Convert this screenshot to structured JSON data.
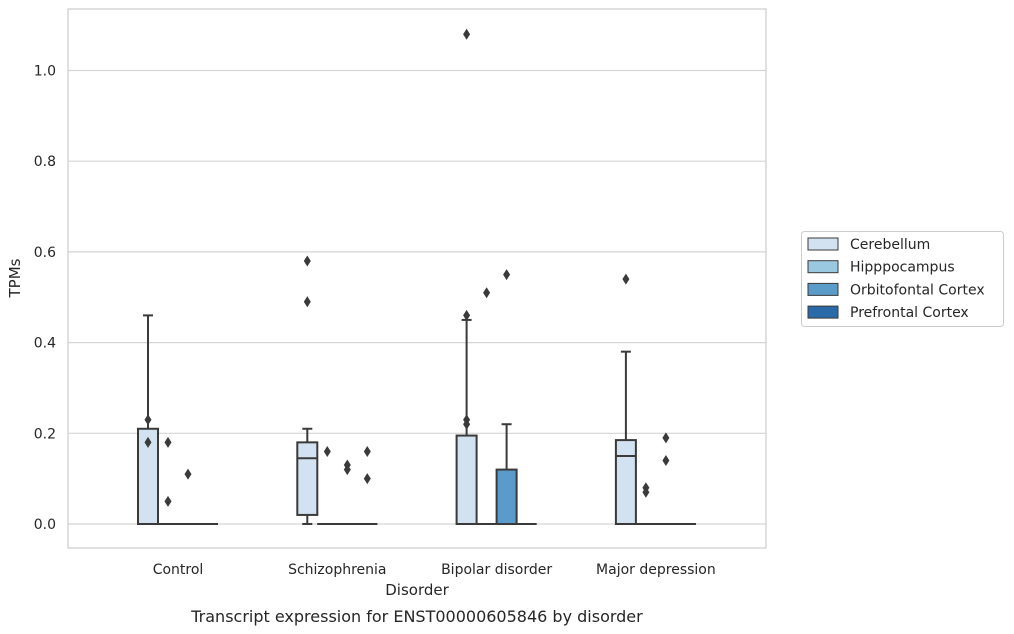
{
  "chart_data": {
    "type": "box",
    "title": "",
    "caption": "Transcript expression for ENST00000605846 by disorder",
    "xlabel": "Disorder",
    "ylabel": "TPMs",
    "ylim": [
      -0.05,
      1.135
    ],
    "yticks": [
      "0.0",
      "0.2",
      "0.4",
      "0.6",
      "0.8",
      "1.0"
    ],
    "ytick_values": [
      0.0,
      0.2,
      0.4,
      0.6,
      0.8,
      1.0
    ],
    "grid": "horizontal",
    "legend_position": "right-outside",
    "categories": [
      "Control",
      "Schizophrenia",
      "Bipolar disorder",
      "Major depression"
    ],
    "series": [
      {
        "name": "Cerebellum",
        "color": "#d2e2f1",
        "boxes": [
          {
            "q1": 0.0,
            "median": 0.0,
            "q3": 0.21,
            "whislo": 0.0,
            "whishi": 0.46,
            "fliers": [
              0.23,
              0.18
            ]
          },
          {
            "q1": 0.02,
            "median": 0.145,
            "q3": 0.18,
            "whislo": 0.0,
            "whishi": 0.21,
            "fliers": [
              0.58,
              0.49
            ]
          },
          {
            "q1": 0.0,
            "median": 0.0,
            "q3": 0.195,
            "whislo": 0.0,
            "whishi": 0.45,
            "fliers": [
              1.08,
              0.46,
              0.23,
              0.22
            ]
          },
          {
            "q1": 0.0,
            "median": 0.15,
            "q3": 0.185,
            "whislo": 0.0,
            "whishi": 0.38,
            "fliers": [
              0.54
            ]
          }
        ]
      },
      {
        "name": "Hipppocampus",
        "color": "#9ac8e0",
        "boxes": [
          {
            "q1": 0.0,
            "median": 0.0,
            "q3": 0.0,
            "whislo": 0.0,
            "whishi": 0.0,
            "fliers": [
              0.18,
              0.05
            ]
          },
          {
            "q1": 0.0,
            "median": 0.0,
            "q3": 0.0,
            "whislo": 0.0,
            "whishi": 0.0,
            "fliers": [
              0.16
            ]
          },
          {
            "q1": 0.0,
            "median": 0.0,
            "q3": 0.0,
            "whislo": 0.0,
            "whishi": 0.0,
            "fliers": [
              0.51
            ]
          },
          {
            "q1": 0.0,
            "median": 0.0,
            "q3": 0.0,
            "whislo": 0.0,
            "whishi": 0.0,
            "fliers": [
              0.08,
              0.07
            ]
          }
        ]
      },
      {
        "name": "Orbitofontal Cortex",
        "color": "#5a9bca",
        "boxes": [
          {
            "q1": 0.0,
            "median": 0.0,
            "q3": 0.0,
            "whislo": 0.0,
            "whishi": 0.0,
            "fliers": [
              0.11
            ]
          },
          {
            "q1": 0.0,
            "median": 0.0,
            "q3": 0.0,
            "whislo": 0.0,
            "whishi": 0.0,
            "fliers": [
              0.13,
              0.12
            ]
          },
          {
            "q1": 0.0,
            "median": 0.0,
            "q3": 0.12,
            "whislo": 0.0,
            "whishi": 0.22,
            "fliers": [
              0.55
            ]
          },
          {
            "q1": 0.0,
            "median": 0.0,
            "q3": 0.0,
            "whislo": 0.0,
            "whishi": 0.0,
            "fliers": [
              0.19,
              0.14
            ]
          }
        ]
      },
      {
        "name": "Prefrontal Cortex",
        "color": "#2a6aa8",
        "boxes": [
          {
            "q1": 0.0,
            "median": 0.0,
            "q3": 0.0,
            "whislo": 0.0,
            "whishi": 0.0,
            "fliers": []
          },
          {
            "q1": 0.0,
            "median": 0.0,
            "q3": 0.0,
            "whislo": 0.0,
            "whishi": 0.0,
            "fliers": [
              0.16,
              0.1
            ]
          },
          {
            "q1": 0.0,
            "median": 0.0,
            "q3": 0.0,
            "whislo": 0.0,
            "whishi": 0.0,
            "fliers": []
          },
          {
            "q1": 0.0,
            "median": 0.0,
            "q3": 0.0,
            "whislo": 0.0,
            "whishi": 0.0,
            "fliers": []
          }
        ]
      }
    ]
  }
}
